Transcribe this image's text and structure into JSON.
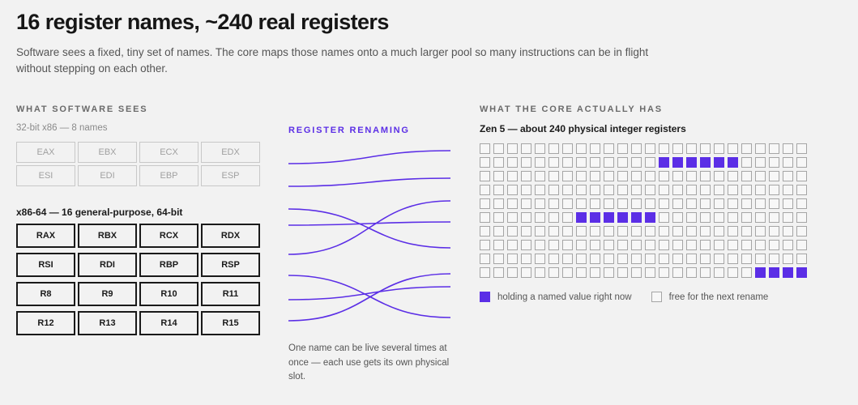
{
  "header": {
    "title": "16 register names, ~240 real registers",
    "subtitle": "Software sees a fixed, tiny set of names. The core maps those names onto a much larger pool so many instructions can be in flight without stepping on each other."
  },
  "software": {
    "section_label": "WHAT SOFTWARE SEES",
    "x86_caption": "32-bit x86 — 8 names",
    "x86_registers": [
      "EAX",
      "EBX",
      "ECX",
      "EDX",
      "ESI",
      "EDI",
      "EBP",
      "ESP"
    ],
    "x64_heading": "x86-64 — 16 general-purpose, 64-bit",
    "x64_registers": [
      "RAX",
      "RBX",
      "RCX",
      "RDX",
      "RSI",
      "RDI",
      "RBP",
      "RSP",
      "R8",
      "R9",
      "R10",
      "R11",
      "R12",
      "R13",
      "R14",
      "R15"
    ]
  },
  "renaming": {
    "label": "REGISTER RENAMING",
    "note": "One name can be live several times at once — each use gets its own physical slot.",
    "line_color": "#5b2ee6"
  },
  "core": {
    "section_label": "WHAT THE CORE ACTUALLY HAS",
    "heading": "Zen 5 — about 240 physical integer registers",
    "grid_columns": 24,
    "grid_rows": 10,
    "occupied": [
      {
        "row": 1,
        "cols": [
          13,
          14,
          15,
          16,
          17,
          18
        ]
      },
      {
        "row": 5,
        "cols": [
          7,
          8,
          9,
          10,
          11,
          12
        ]
      },
      {
        "row": 9,
        "cols": [
          20,
          21,
          22,
          23
        ]
      }
    ],
    "legend_used": "holding a named value right now",
    "legend_free": "free for the next rename",
    "accent_color": "#5b2ee6"
  }
}
